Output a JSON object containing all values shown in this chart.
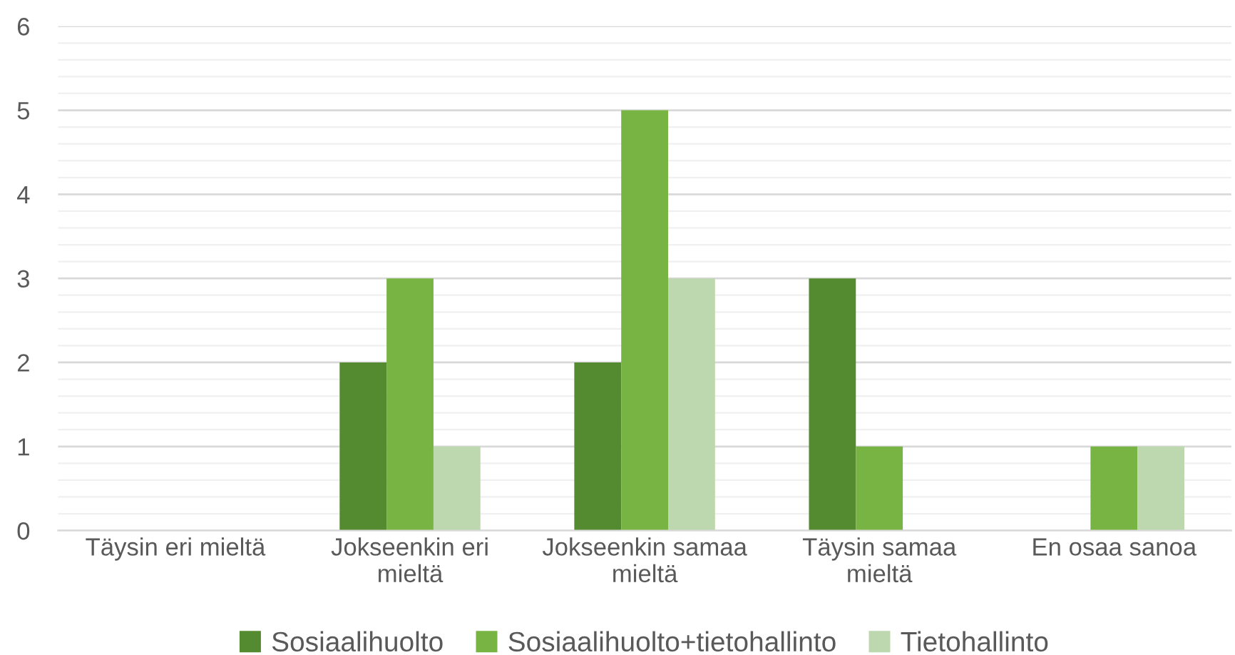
{
  "chart_data": {
    "type": "bar",
    "categories": [
      "Täysin eri mieltä",
      "Jokseenkin eri\nmieltä",
      "Jokseenkin samaa\nmieltä",
      "Täysin samaa\nmieltä",
      "En osaa sanoa"
    ],
    "series": [
      {
        "name": "Sosiaalihuolto",
        "color": "#548b30",
        "values": [
          0,
          2,
          2,
          3,
          0
        ]
      },
      {
        "name": "Sosiaalihuolto+tietohallinto",
        "color": "#78b443",
        "values": [
          0,
          3,
          5,
          1,
          1
        ]
      },
      {
        "name": "Tietohallinto",
        "color": "#bdd7ae",
        "values": [
          0,
          1,
          3,
          0,
          1
        ]
      }
    ],
    "ylim": [
      0,
      6
    ],
    "yticks": [
      0,
      1,
      2,
      3,
      4,
      5,
      6
    ],
    "grid": "y",
    "legend": "bottom"
  }
}
